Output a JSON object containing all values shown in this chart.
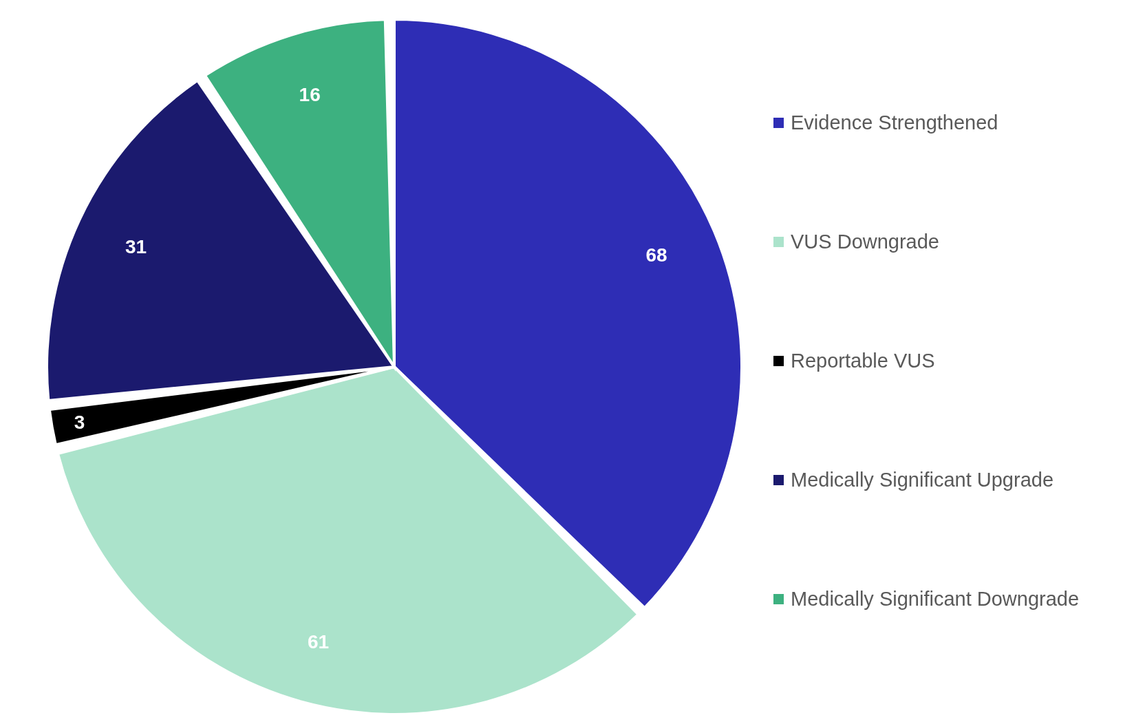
{
  "chart_data": {
    "type": "pie",
    "categories": [
      "Evidence Strengthened",
      "VUS Downgrade",
      "Reportable VUS",
      "Medically Significant Upgrade",
      "Medically Significant Downgrade"
    ],
    "values": [
      68,
      61,
      3,
      31,
      16
    ],
    "colors": [
      "#2e2db5",
      "#abe3cb",
      "#000000",
      "#1b1a6e",
      "#3db180"
    ],
    "data_labels": true,
    "legend": "right"
  }
}
